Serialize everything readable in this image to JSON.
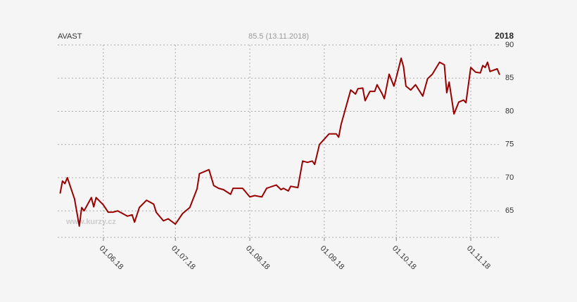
{
  "chart_data": {
    "type": "line",
    "title": "AVAST",
    "subtitle": "85.5 (13.11.2018)",
    "year": "2018",
    "watermark": "www.kurzy.cz",
    "grid": true,
    "color": "#990000",
    "xlim": [
      "2018-05-13",
      "2018-11-13"
    ],
    "xticks": [
      {
        "value": "2018-06-01",
        "label": "01.06.18"
      },
      {
        "value": "2018-07-01",
        "label": "01.07.18"
      },
      {
        "value": "2018-08-01",
        "label": "01.08.18"
      },
      {
        "value": "2018-09-01",
        "label": "01.09.18"
      },
      {
        "value": "2018-10-01",
        "label": "01.10.18"
      },
      {
        "value": "2018-11-01",
        "label": "01.11.18"
      }
    ],
    "ylim": [
      61,
      90
    ],
    "yticks": [
      65,
      70,
      75,
      80,
      85,
      90
    ],
    "x": [
      "2018-05-14",
      "2018-05-15",
      "2018-05-16",
      "2018-05-17",
      "2018-05-20",
      "2018-05-22",
      "2018-05-23",
      "2018-05-24",
      "2018-05-27",
      "2018-05-28",
      "2018-05-29",
      "2018-06-01",
      "2018-06-03",
      "2018-06-05",
      "2018-06-07",
      "2018-06-09",
      "2018-06-11",
      "2018-06-13",
      "2018-06-14",
      "2018-06-16",
      "2018-06-19",
      "2018-06-22",
      "2018-06-23",
      "2018-06-26",
      "2018-06-28",
      "2018-07-01",
      "2018-07-04",
      "2018-07-07",
      "2018-07-10",
      "2018-07-11",
      "2018-07-15",
      "2018-07-17",
      "2018-07-19",
      "2018-07-21",
      "2018-07-24",
      "2018-07-25",
      "2018-07-29",
      "2018-08-01",
      "2018-08-03",
      "2018-08-06",
      "2018-08-08",
      "2018-08-12",
      "2018-08-14",
      "2018-08-15",
      "2018-08-17",
      "2018-08-18",
      "2018-08-21",
      "2018-08-23",
      "2018-08-25",
      "2018-08-27",
      "2018-08-28",
      "2018-08-30",
      "2018-09-01",
      "2018-09-03",
      "2018-09-06",
      "2018-09-07",
      "2018-09-08",
      "2018-09-12",
      "2018-09-14",
      "2018-09-15",
      "2018-09-17",
      "2018-09-18",
      "2018-09-20",
      "2018-09-22",
      "2018-09-23",
      "2018-09-25",
      "2018-09-26",
      "2018-09-28",
      "2018-09-30",
      "2018-10-01",
      "2018-10-03",
      "2018-10-04",
      "2018-10-05",
      "2018-10-07",
      "2018-10-09",
      "2018-10-12",
      "2018-10-14",
      "2018-10-16",
      "2018-10-19",
      "2018-10-21",
      "2018-10-22",
      "2018-10-23",
      "2018-10-25",
      "2018-10-27",
      "2018-10-29",
      "2018-10-30",
      "2018-11-01",
      "2018-11-03",
      "2018-11-05",
      "2018-11-06",
      "2018-11-07",
      "2018-11-08",
      "2018-11-09",
      "2018-11-12",
      "2018-11-13"
    ],
    "values": [
      67.6,
      69.5,
      69.1,
      70,
      66.8,
      62.7,
      65.5,
      65,
      67,
      65.6,
      67,
      65.9,
      64.8,
      64.8,
      65,
      64.6,
      64.2,
      64.4,
      63.3,
      65.5,
      66.6,
      66,
      64.8,
      63.5,
      63.8,
      63,
      64.6,
      65.5,
      68.3,
      70.6,
      71.2,
      68.8,
      68.4,
      68.2,
      67.5,
      68.4,
      68.4,
      67.1,
      67.3,
      67.1,
      68.4,
      68.9,
      68.2,
      68.4,
      68,
      68.7,
      68.5,
      72.5,
      72.3,
      72.5,
      72,
      75,
      75.8,
      76.6,
      76.6,
      76.1,
      78,
      83.2,
      82.6,
      83.4,
      83.5,
      81.6,
      83,
      83,
      84,
      82.7,
      81.9,
      85.6,
      83.8,
      85.1,
      88,
      86.7,
      83.8,
      83.2,
      84,
      82.3,
      84.9,
      85.6,
      87.4,
      87,
      82.8,
      84.4,
      79.6,
      81.4,
      81.7,
      81.3,
      86.6,
      85.9,
      85.8,
      86.9,
      86.6,
      87.4,
      86,
      86.4,
      85.5
    ]
  }
}
